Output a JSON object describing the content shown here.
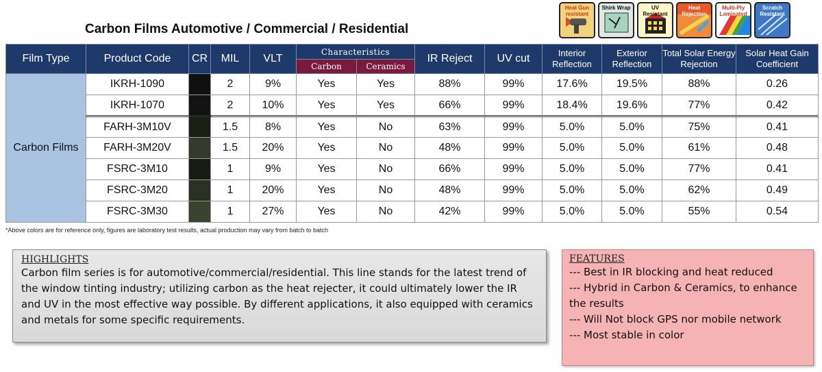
{
  "title": "Carbon Films Automotive / Commercial / Residential",
  "badges": [
    {
      "label": "Heat Gun resistant",
      "icon": "heat-gun-icon",
      "color": "#d23a1e"
    },
    {
      "label": "Shirk Wrap",
      "icon": "shrink-wrap-icon",
      "color": "#111111"
    },
    {
      "label": "UV Resistant",
      "icon": "uv-resistant-icon",
      "color": "#111111"
    },
    {
      "label": "Heat Rejection",
      "icon": "heat-rejection-icon",
      "color": "#ffffff"
    },
    {
      "label": "Multi-Ply Laminated",
      "icon": "multi-ply-icon",
      "color": "#d23a1e"
    },
    {
      "label": "Scratch Resistant",
      "icon": "scratch-resistant-icon",
      "color": "#ffffff"
    }
  ],
  "table": {
    "headers": {
      "film_type": "Film Type",
      "product_code": "Product Code",
      "cr": "CR",
      "mil": "MIL",
      "vlt": "VLT",
      "characteristics": "Characteristics",
      "carbon": "Carbon",
      "ceramics": "Ceramics",
      "ir_reject": "IR Reject",
      "uv_cut": "UV cut",
      "interior_reflection": "Interior Reflection",
      "exterior_reflection": "Exterior Reflection",
      "tser": "Total Solar Energy Rejection",
      "shgc": "Solar Heat Gain Coefficient"
    },
    "film_type": "Carbon Films",
    "rows": [
      {
        "code": "IKRH-1090",
        "cr_color": "#101010",
        "mil": "2",
        "vlt": "9%",
        "carbon": "Yes",
        "ceramics": "Yes",
        "ir": "88%",
        "uv": "99%",
        "int": "17.6%",
        "ext": "19.5%",
        "tser": "88%",
        "shgc": "0.26"
      },
      {
        "code": "IKRH-1070",
        "cr_color": "#131313",
        "mil": "2",
        "vlt": "10%",
        "carbon": "Yes",
        "ceramics": "Yes",
        "ir": "66%",
        "uv": "99%",
        "int": "18.4%",
        "ext": "19.6%",
        "tser": "77%",
        "shgc": "0.42"
      },
      {
        "code": "FARH-3M10V",
        "cr_color": "#1a2016",
        "mil": "1.5",
        "vlt": "8%",
        "carbon": "Yes",
        "ceramics": "No",
        "ir": "63%",
        "uv": "99%",
        "int": "5.0%",
        "ext": "5.0%",
        "tser": "75%",
        "shgc": "0.41"
      },
      {
        "code": "FARH-3M20V",
        "cr_color": "#343a2c",
        "mil": "1.5",
        "vlt": "20%",
        "carbon": "Yes",
        "ceramics": "No",
        "ir": "48%",
        "uv": "99%",
        "int": "5.0%",
        "ext": "5.0%",
        "tser": "61%",
        "shgc": "0.48"
      },
      {
        "code": "FSRC-3M10",
        "cr_color": "#161c14",
        "mil": "1",
        "vlt": "9%",
        "carbon": "Yes",
        "ceramics": "No",
        "ir": "66%",
        "uv": "99%",
        "int": "5.0%",
        "ext": "5.0%",
        "tser": "77%",
        "shgc": "0.41"
      },
      {
        "code": "FSRC-3M20",
        "cr_color": "#2a3024",
        "mil": "1",
        "vlt": "20%",
        "carbon": "Yes",
        "ceramics": "No",
        "ir": "48%",
        "uv": "99%",
        "int": "5.0%",
        "ext": "5.0%",
        "tser": "62%",
        "shgc": "0.49"
      },
      {
        "code": "FSRC-3M30",
        "cr_color": "#3a4230",
        "mil": "1",
        "vlt": "27%",
        "carbon": "Yes",
        "ceramics": "No",
        "ir": "42%",
        "uv": "99%",
        "int": "5.0%",
        "ext": "5.0%",
        "tser": "55%",
        "shgc": "0.54"
      }
    ]
  },
  "footnote": "*Above colors are for reference only, figures are laboratory test results, actual production may vary from batch to batch",
  "highlights": {
    "title": "HIGHLIGHTS",
    "text": "Carbon film series is for automotive/commercial/residential. This line stands for the latest trend of the window tinting industry; utilizing carbon as the heat rejecter, it could ultimately lower the IR and UV in the most effective way possible. By different applications, it also equipped with ceramics and metals for some specific requirements."
  },
  "features": {
    "title": "FEATURES",
    "items": [
      "--- Best in IR blocking and heat reduced",
      "--- Hybrid in Carbon & Ceramics, to enhance the results",
      "--- Will Not block GPS nor mobile network",
      "--- Most stable in color"
    ]
  },
  "colors": {
    "header_bg": "#1d3a6a",
    "subheader_bg": "#7a1a3c",
    "film_cell_bg": "#a9c3e3",
    "highlights_bg": "#e0e0e0",
    "features_bg": "#f6b3b3"
  }
}
